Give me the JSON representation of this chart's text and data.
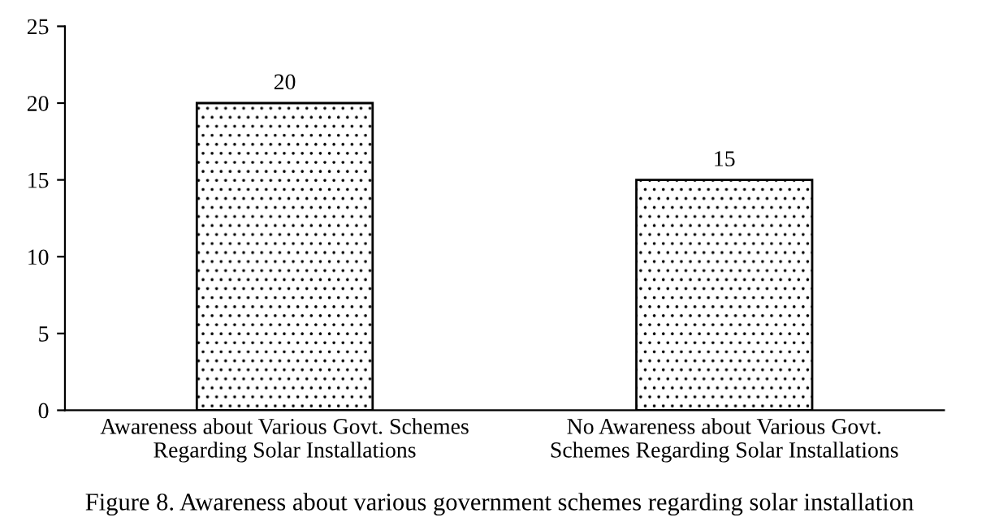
{
  "chart_data": {
    "type": "bar",
    "title": "Figure 8. Awareness about various government schemes regarding solar installation",
    "categories": [
      "Awareness about Various Govt. Schemes\nRegarding Solar Installations",
      "No Awareness about Various Govt.\nSchemes Regarding Solar Installations"
    ],
    "values": [
      20,
      15
    ],
    "color": "#000000",
    "ylim": [
      0,
      25
    ],
    "yticks": [
      0,
      5,
      10,
      15,
      20,
      25
    ],
    "grid": false,
    "data_labels": true
  }
}
